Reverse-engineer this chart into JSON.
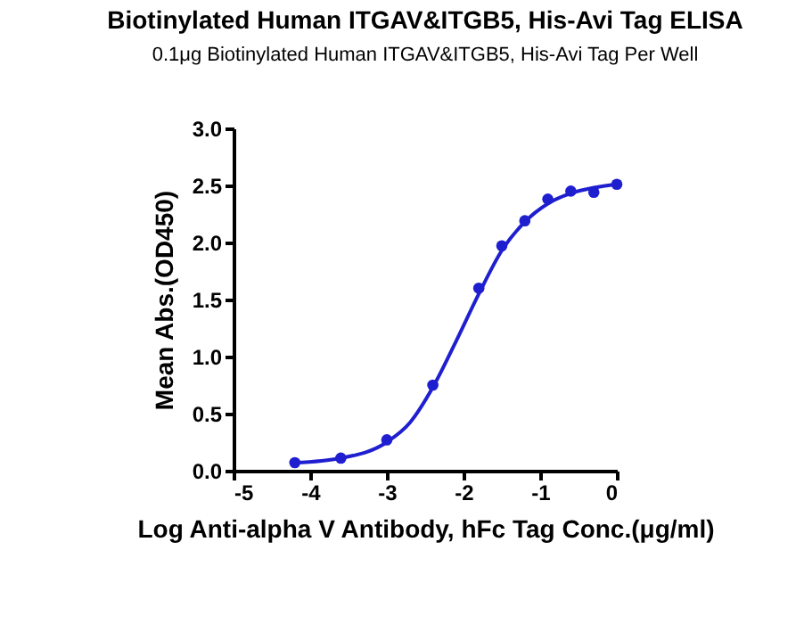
{
  "chart_data": {
    "type": "scatter",
    "title": "Biotinylated Human ITGAV&ITGB5, His-Avi Tag ELISA",
    "subtitle": "0.1μg Biotinylated Human ITGAV&ITGB5, His-Avi Tag Per Well",
    "xlabel": "Log Anti-alpha V Antibody, hFc Tag Conc.(μg/ml)",
    "ylabel": "Mean Abs.(OD450)",
    "xlim": [
      -5,
      0
    ],
    "xticks": [
      -5,
      -4,
      -3,
      -2,
      -1,
      0
    ],
    "ylim": [
      0,
      3
    ],
    "yticks": [
      {
        "value": 0,
        "label": "0.0"
      },
      {
        "value": 0.5,
        "label": "0.5"
      },
      {
        "value": 1,
        "label": "1.0"
      },
      {
        "value": 1.5,
        "label": "1.5"
      },
      {
        "value": 2,
        "label": "2.0"
      },
      {
        "value": 2.5,
        "label": "2.5"
      },
      {
        "value": 3,
        "label": "3.0"
      }
    ],
    "grid": false,
    "marker": "circle",
    "series": [
      {
        "color": "#1f1fd0",
        "x": [
          -4.2,
          -3.6,
          -3.0,
          -2.4,
          -1.8,
          -1.5,
          -1.2,
          -0.9,
          -0.6,
          -0.3,
          0
        ],
        "values": [
          0.07,
          0.11,
          0.27,
          0.75,
          1.6,
          1.97,
          2.19,
          2.38,
          2.45,
          2.44,
          2.51
        ]
      },
      {
        "type": "line",
        "marker": "none",
        "color": "#1f1fd0",
        "x": [
          -4.2,
          -3.6,
          -3.0,
          -2.7,
          -2.4,
          -2.1,
          -1.8,
          -1.5,
          -1.2,
          -0.9,
          -0.6,
          -0.3,
          0
        ],
        "values": [
          0.07,
          0.11,
          0.25,
          0.42,
          0.73,
          1.13,
          1.55,
          1.93,
          2.18,
          2.34,
          2.43,
          2.48,
          2.51
        ]
      }
    ]
  }
}
